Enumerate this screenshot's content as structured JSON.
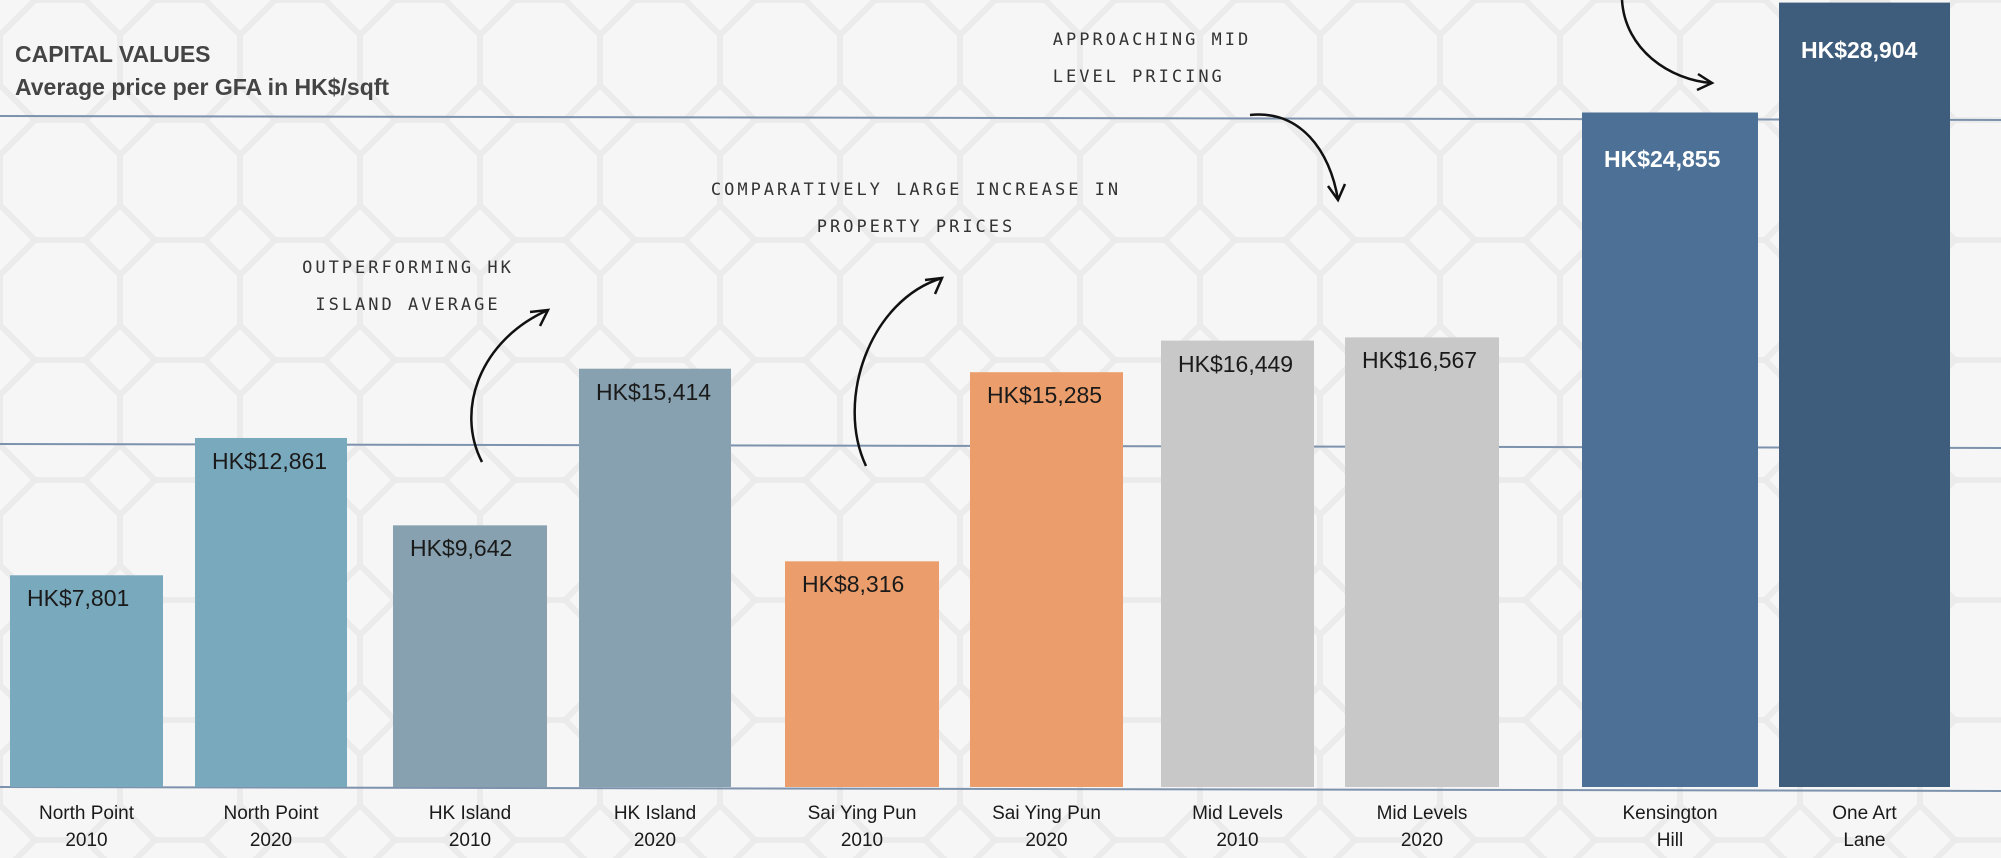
{
  "chart_data": {
    "type": "bar",
    "title": "CAPITAL VALUES",
    "subtitle": "Average price per GFA in HK$/sqft",
    "categories": [
      "North Point\n2010",
      "North Point\n2020",
      "HK Island\n2010",
      "HK Island\n2020",
      "Sai Ying Pun\n2010",
      "Sai Ying Pun\n2020",
      "Mid Levels\n2010",
      "Mid Levels\n2020",
      "Kensington\nHill",
      "One Art\nLane"
    ],
    "values": [
      7801,
      12861,
      9642,
      15414,
      8316,
      15285,
      16449,
      16567,
      24855,
      28904
    ],
    "value_labels": [
      "HK$7,801",
      "HK$12,861",
      "HK$9,642",
      "HK$15,414",
      "HK$8,316",
      "HK$15,285",
      "HK$16,449",
      "HK$16,567",
      "HK$24,855",
      "HK$28,904"
    ],
    "colors": [
      "#79a9bd",
      "#79a9bd",
      "#87a1b0",
      "#87a1b0",
      "#eb9e6c",
      "#eb9e6c",
      "#c8c8c8",
      "#c8c8c8",
      "#4d7196",
      "#3e5d7c"
    ],
    "label_colors": [
      "#1a1a1a",
      "#1a1a1a",
      "#1a1a1a",
      "#1a1a1a",
      "#1a1a1a",
      "#1a1a1a",
      "#1a1a1a",
      "#1a1a1a",
      "#ffffff",
      "#ffffff"
    ],
    "ylim": [
      0,
      29000
    ],
    "annotations": [
      "OUTPERFORMING HK\nISLAND AVERAGE",
      "COMPARATIVELY LARGE INCREASE IN\nPROPERTY PRICES",
      "APPROACHING MID\nLEVEL PRICING"
    ]
  }
}
